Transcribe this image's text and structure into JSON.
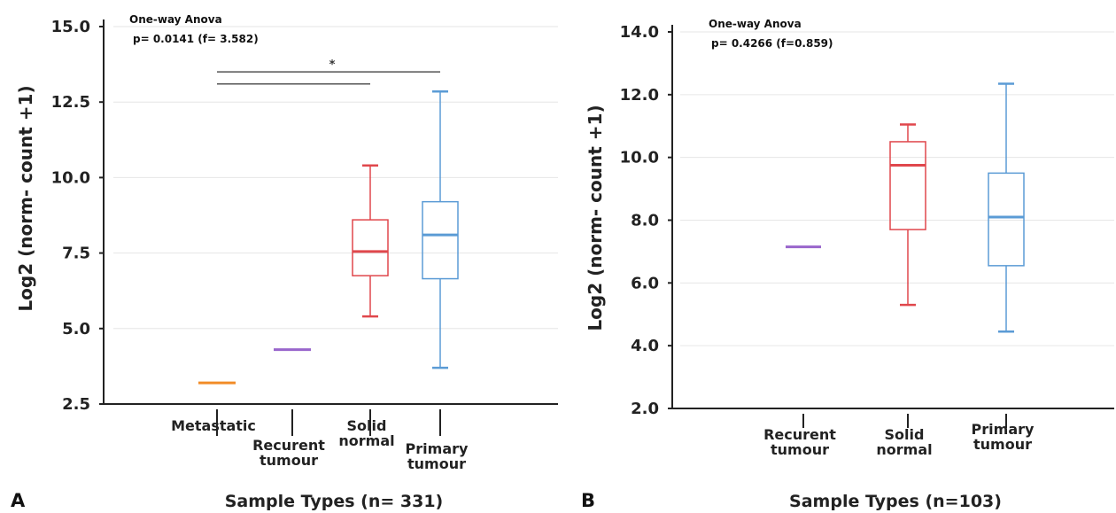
{
  "chart_data": [
    {
      "type": "boxplot",
      "panel_label": "A",
      "annotation_title": "One-way Anova",
      "annotation_stats": "p= 0.0141 (f= 3.582)",
      "significance_marker": "*",
      "ylabel": "Log2 (norm- count +1)",
      "xlabel": "Sample Types (n= 331)",
      "ylim": [
        2.5,
        15.0
      ],
      "yticks": [
        2.5,
        5.0,
        7.5,
        10.0,
        12.5,
        15.0
      ],
      "ytick_labels": [
        "2.5",
        "5.0",
        "7.5",
        "10.0",
        "12.5",
        "15.0"
      ],
      "grid": true,
      "categories": [
        {
          "label": [
            "Metastatic"
          ],
          "color": "#f28c28",
          "single": true,
          "median": 3.2
        },
        {
          "label": [
            "Recurent",
            "tumour"
          ],
          "color": "#9966cc",
          "single": true,
          "median": 4.3
        },
        {
          "label": [
            "Solid",
            "normal"
          ],
          "color": "#e0474c",
          "single": false,
          "min": 5.4,
          "q1": 6.75,
          "median": 7.55,
          "q3": 8.6,
          "max": 10.4
        },
        {
          "label": [
            "Primary",
            "tumour"
          ],
          "color": "#5b9bd5",
          "single": false,
          "min": 3.7,
          "q1": 6.65,
          "median": 8.1,
          "q3": 9.2,
          "max": 12.85
        }
      ],
      "comparisons": [
        {
          "from": 0,
          "to": 3,
          "level": 13.5
        },
        {
          "from": 0,
          "to": 2,
          "level": 13.1
        }
      ]
    },
    {
      "type": "boxplot",
      "panel_label": "B",
      "annotation_title": "One-way Anova",
      "annotation_stats": "p= 0.4266 (f=0.859)",
      "ylabel": "Log2 (norm- count +1)",
      "xlabel": "Sample Types (n=103)",
      "ylim": [
        2.0,
        14.0
      ],
      "yticks": [
        2.0,
        4.0,
        6.0,
        8.0,
        10.0,
        12.0,
        14.0
      ],
      "ytick_labels": [
        "2.0",
        "4.0",
        "6.0",
        "8.0",
        "10.0",
        "12.0",
        "14.0"
      ],
      "grid": true,
      "categories": [
        {
          "label": [
            "Recurent",
            "tumour"
          ],
          "color": "#9966cc",
          "single": true,
          "median": 7.15
        },
        {
          "label": [
            "Solid",
            "normal"
          ],
          "color": "#e0474c",
          "single": false,
          "min": 5.3,
          "q1": 7.7,
          "median": 9.75,
          "q3": 10.5,
          "max": 11.05
        },
        {
          "label": [
            "Primary",
            "tumour"
          ],
          "color": "#5b9bd5",
          "single": false,
          "min": 4.45,
          "q1": 6.55,
          "median": 8.1,
          "q3": 9.5,
          "max": 12.35
        }
      ]
    }
  ]
}
